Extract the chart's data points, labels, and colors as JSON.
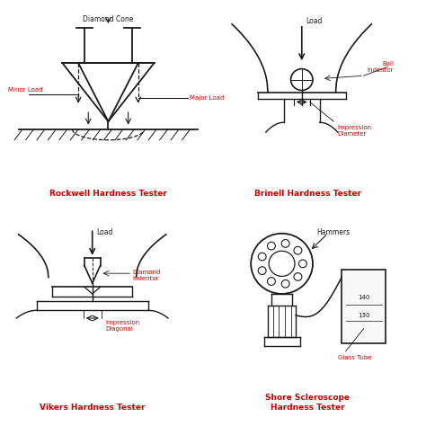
{
  "title_color": "#cc0000",
  "line_color": "#1a1a1a",
  "bg_color": "#ffffff",
  "label_color_red": "#cc0000",
  "label_color_black": "#1a1a1a",
  "titles": {
    "rockwell": "Rockwell Hardness Tester",
    "brinell": "Brinell Hardness Tester",
    "vikers": "Vikers Hardness Tester",
    "shore": "Shore Scleroscope\nHardness Tester"
  }
}
